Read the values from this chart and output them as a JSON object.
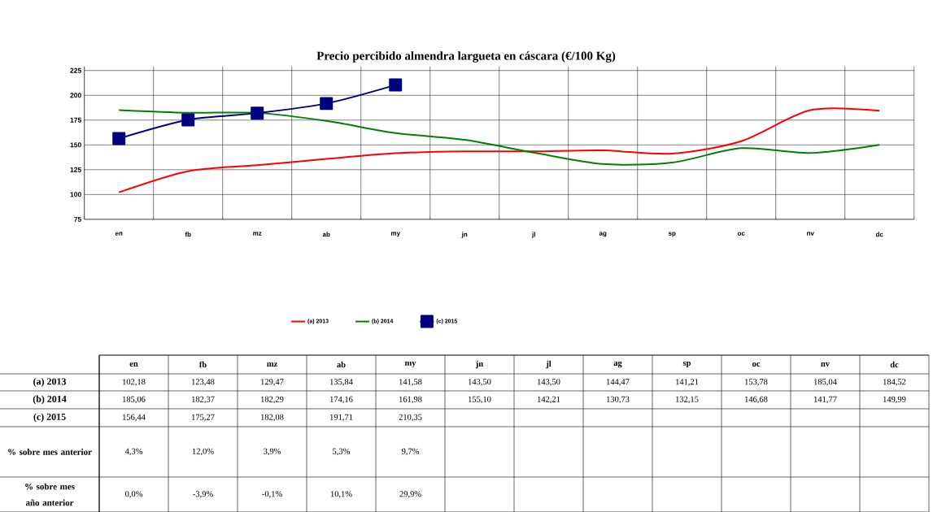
{
  "chart_data": {
    "type": "line",
    "title": "Precio percibido almendra largueta en cáscara (€/100 Kg)",
    "categories": [
      "en",
      "fb",
      "mz",
      "ab",
      "my",
      "jn",
      "jl",
      "ag",
      "sp",
      "oc",
      "nv",
      "dc"
    ],
    "series": [
      {
        "name": "(a) 2013",
        "color": "#ff0000",
        "marker": "none",
        "values": [
          102.18,
          123.48,
          129.47,
          135.84,
          141.58,
          143.5,
          143.5,
          144.47,
          141.21,
          153.78,
          185.04,
          184.52
        ],
        "value_labels": [
          "102,18",
          "123,48",
          "129,47",
          "135,84",
          "141,58",
          "143,50",
          "143,50",
          "144,47",
          "141,21",
          "153,78",
          "185,04",
          "184,52"
        ]
      },
      {
        "name": "(b) 2014",
        "color": "#008000",
        "marker": "none",
        "values": [
          185.06,
          182.37,
          182.29,
          174.16,
          161.98,
          155.1,
          142.21,
          130.73,
          132.15,
          146.68,
          141.77,
          149.99
        ],
        "value_labels": [
          "185,06",
          "182,37",
          "182,29",
          "174,16",
          "161,98",
          "155,10",
          "142,21",
          "130,73",
          "132,15",
          "146,68",
          "141,77",
          "149,99"
        ]
      },
      {
        "name": "(c) 2015",
        "color": "#000080",
        "marker": "square",
        "values": [
          156.44,
          175.27,
          182.08,
          191.71,
          210.35,
          null,
          null,
          null,
          null,
          null,
          null,
          null
        ],
        "value_labels": [
          "156,44",
          "175,27",
          "182,08",
          "191,71",
          "210,35",
          null,
          null,
          null,
          null,
          null,
          null,
          null
        ]
      }
    ],
    "ylim": [
      75,
      229
    ],
    "yticks": [
      75,
      100,
      125,
      150,
      175,
      200,
      225
    ],
    "grid": true,
    "legend": "bottom",
    "annotations": [
      "% sobre mes anterior",
      "4,3%",
      "12,0%",
      "3,9%",
      "5,3%",
      "9,7%",
      "% sobre mes año anterior",
      "0,0%",
      "-3,9%",
      "-0,1%",
      "10,1%",
      "29,9%"
    ]
  }
}
